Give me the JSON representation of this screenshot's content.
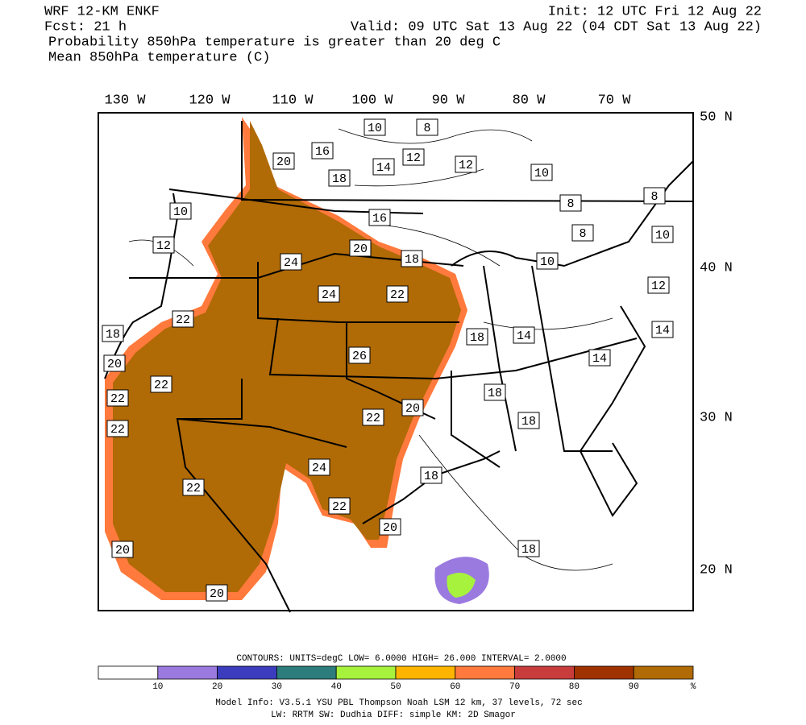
{
  "header": {
    "model": "WRF 12-KM ENKF",
    "init": "Init: 12 UTC Fri 12 Aug 22",
    "fcst": "Fcst:   21 h",
    "valid": "Valid: 09 UTC Sat 13 Aug 22 (04 CDT Sat 13 Aug 22)",
    "field1": "Probability 850hPa temperature is greater than 20 deg C",
    "field2": "Mean 850hPa temperature (C)"
  },
  "map": {
    "lon_labels": [
      "130 W",
      "120 W",
      "110 W",
      "100 W",
      "90 W",
      "80 W",
      "70 W"
    ],
    "lat_labels": [
      "50 N",
      "40 N",
      "30 N",
      "20 N"
    ],
    "contour_labels": [
      "10",
      "8",
      "16",
      "20",
      "14",
      "12",
      "12",
      "10",
      "18",
      "8",
      "8",
      "10",
      "16",
      "8",
      "10",
      "12",
      "20",
      "18",
      "24",
      "10",
      "12",
      "24",
      "22",
      "22",
      "18",
      "18",
      "14",
      "14",
      "26",
      "14",
      "20",
      "22",
      "18",
      "22",
      "20",
      "22",
      "18",
      "22",
      "24",
      "18",
      "22",
      "22",
      "20",
      "18",
      "20",
      "20"
    ]
  },
  "colorbar": {
    "colors": [
      "#ffffff",
      "#9b7ae0",
      "#3c3cbe",
      "#2e7d7d",
      "#a6f23c",
      "#ffb400",
      "#ff7a3c",
      "#c83c3c",
      "#a03200",
      "#b06a06"
    ],
    "labels": [
      "10",
      "20",
      "30",
      "40",
      "50",
      "60",
      "70",
      "80",
      "90",
      "%"
    ]
  },
  "footer": {
    "contours": "CONTOURS:  UNITS=degC  LOW=  6.0000     HIGH= 26.000     INTERVAL=  2.0000",
    "info1": "Model Info: V3.5.1        YSU PBL  Thompson     Noah LSM  12 km,    37 levels,   72 sec",
    "info2": "LW: RRTM SW: Dudhia  DIFF: simple KM: 2D Smagor"
  }
}
